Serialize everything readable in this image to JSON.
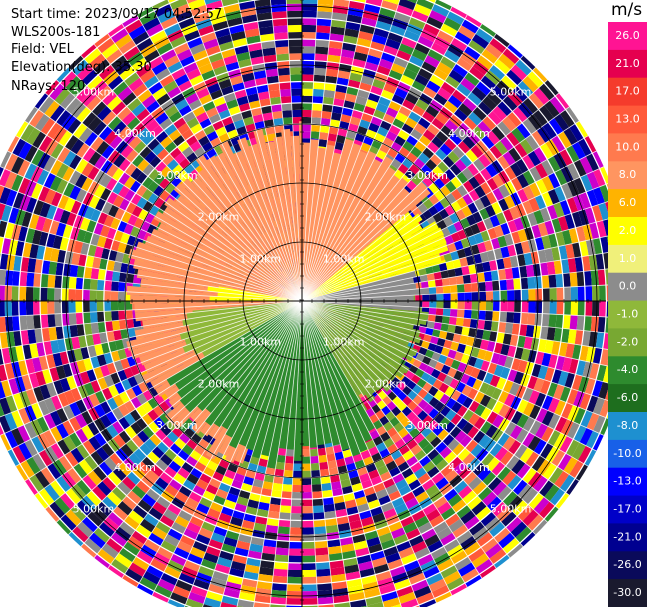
{
  "header": {
    "start_time": "Start time: 2023/09/17 04:52:57",
    "instrument": "WLS200s-181",
    "field": "Field: VEL",
    "elevation": "Elevation(deg): 35.30",
    "nrays": "NRays: 120"
  },
  "colorbar": {
    "unit": "m/s",
    "levels": [
      {
        "label": "26.0",
        "color": "#ff1493"
      },
      {
        "label": "21.0",
        "color": "#e5004f"
      },
      {
        "label": "17.0",
        "color": "#f53b2c"
      },
      {
        "label": "13.0",
        "color": "#ff5a3a"
      },
      {
        "label": "10.0",
        "color": "#ff7a4e"
      },
      {
        "label": "8.0",
        "color": "#ff9560"
      },
      {
        "label": "6.0",
        "color": "#ffb300"
      },
      {
        "label": "2.0",
        "color": "#ffff00"
      },
      {
        "label": "1.0",
        "color": "#f0f07a"
      },
      {
        "label": "0.0",
        "color": "#8c8c8c"
      },
      {
        "label": "-1.0",
        "color": "#8fb83a"
      },
      {
        "label": "-2.0",
        "color": "#78a832"
      },
      {
        "label": "-4.0",
        "color": "#2e8b2e"
      },
      {
        "label": "-6.0",
        "color": "#1e6e1e"
      },
      {
        "label": "-8.0",
        "color": "#1e90d0"
      },
      {
        "label": "-10.0",
        "color": "#1860e8"
      },
      {
        "label": "-13.0",
        "color": "#0000ff"
      },
      {
        "label": "-17.0",
        "color": "#0000c8"
      },
      {
        "label": "-21.0",
        "color": "#000090"
      },
      {
        "label": "-26.0",
        "color": "#0a0a5a"
      },
      {
        "label": "-30.0",
        "color": "#1a1a2e"
      }
    ]
  },
  "chart_data": {
    "type": "heatmap",
    "projection": "polar (PPI scan)",
    "field": "VEL",
    "units": "m/s",
    "range_rings_km": [
      1.0,
      2.0,
      3.0,
      4.0,
      5.0
    ],
    "range_ring_labels": [
      "1.00km",
      "2.00km",
      "3.00km",
      "4.00km",
      "5.00km"
    ],
    "max_range_km": 5.6,
    "n_rays": 120,
    "sectors": [
      {
        "azimuth_deg_from": 200,
        "azimuth_deg_to": 360,
        "max_range_km": 2.9,
        "value_mps": 8.0
      },
      {
        "azimuth_deg_from": 270,
        "azimuth_deg_to": 280,
        "max_range_km": 1.5,
        "value_mps": 2.0
      },
      {
        "azimuth_deg_from": 0,
        "azimuth_deg_to": 50,
        "max_range_km": 2.7,
        "value_mps": 8.0
      },
      {
        "azimuth_deg_from": 50,
        "azimuth_deg_to": 75,
        "max_range_km": 2.5,
        "value_mps": 2.0
      },
      {
        "azimuth_deg_from": 75,
        "azimuth_deg_to": 95,
        "max_range_km": 2.0,
        "value_mps": 0.0
      },
      {
        "azimuth_deg_from": 95,
        "azimuth_deg_to": 150,
        "max_range_km": 2.0,
        "value_mps": -2.0
      },
      {
        "azimuth_deg_from": 150,
        "azimuth_deg_to": 240,
        "max_range_km": 2.6,
        "value_mps": -4.0
      },
      {
        "azimuth_deg_from": 240,
        "azimuth_deg_to": 265,
        "max_range_km": 2.0,
        "value_mps": -1.0
      }
    ],
    "outer_region": "noise (random velocities across full color scale)"
  }
}
